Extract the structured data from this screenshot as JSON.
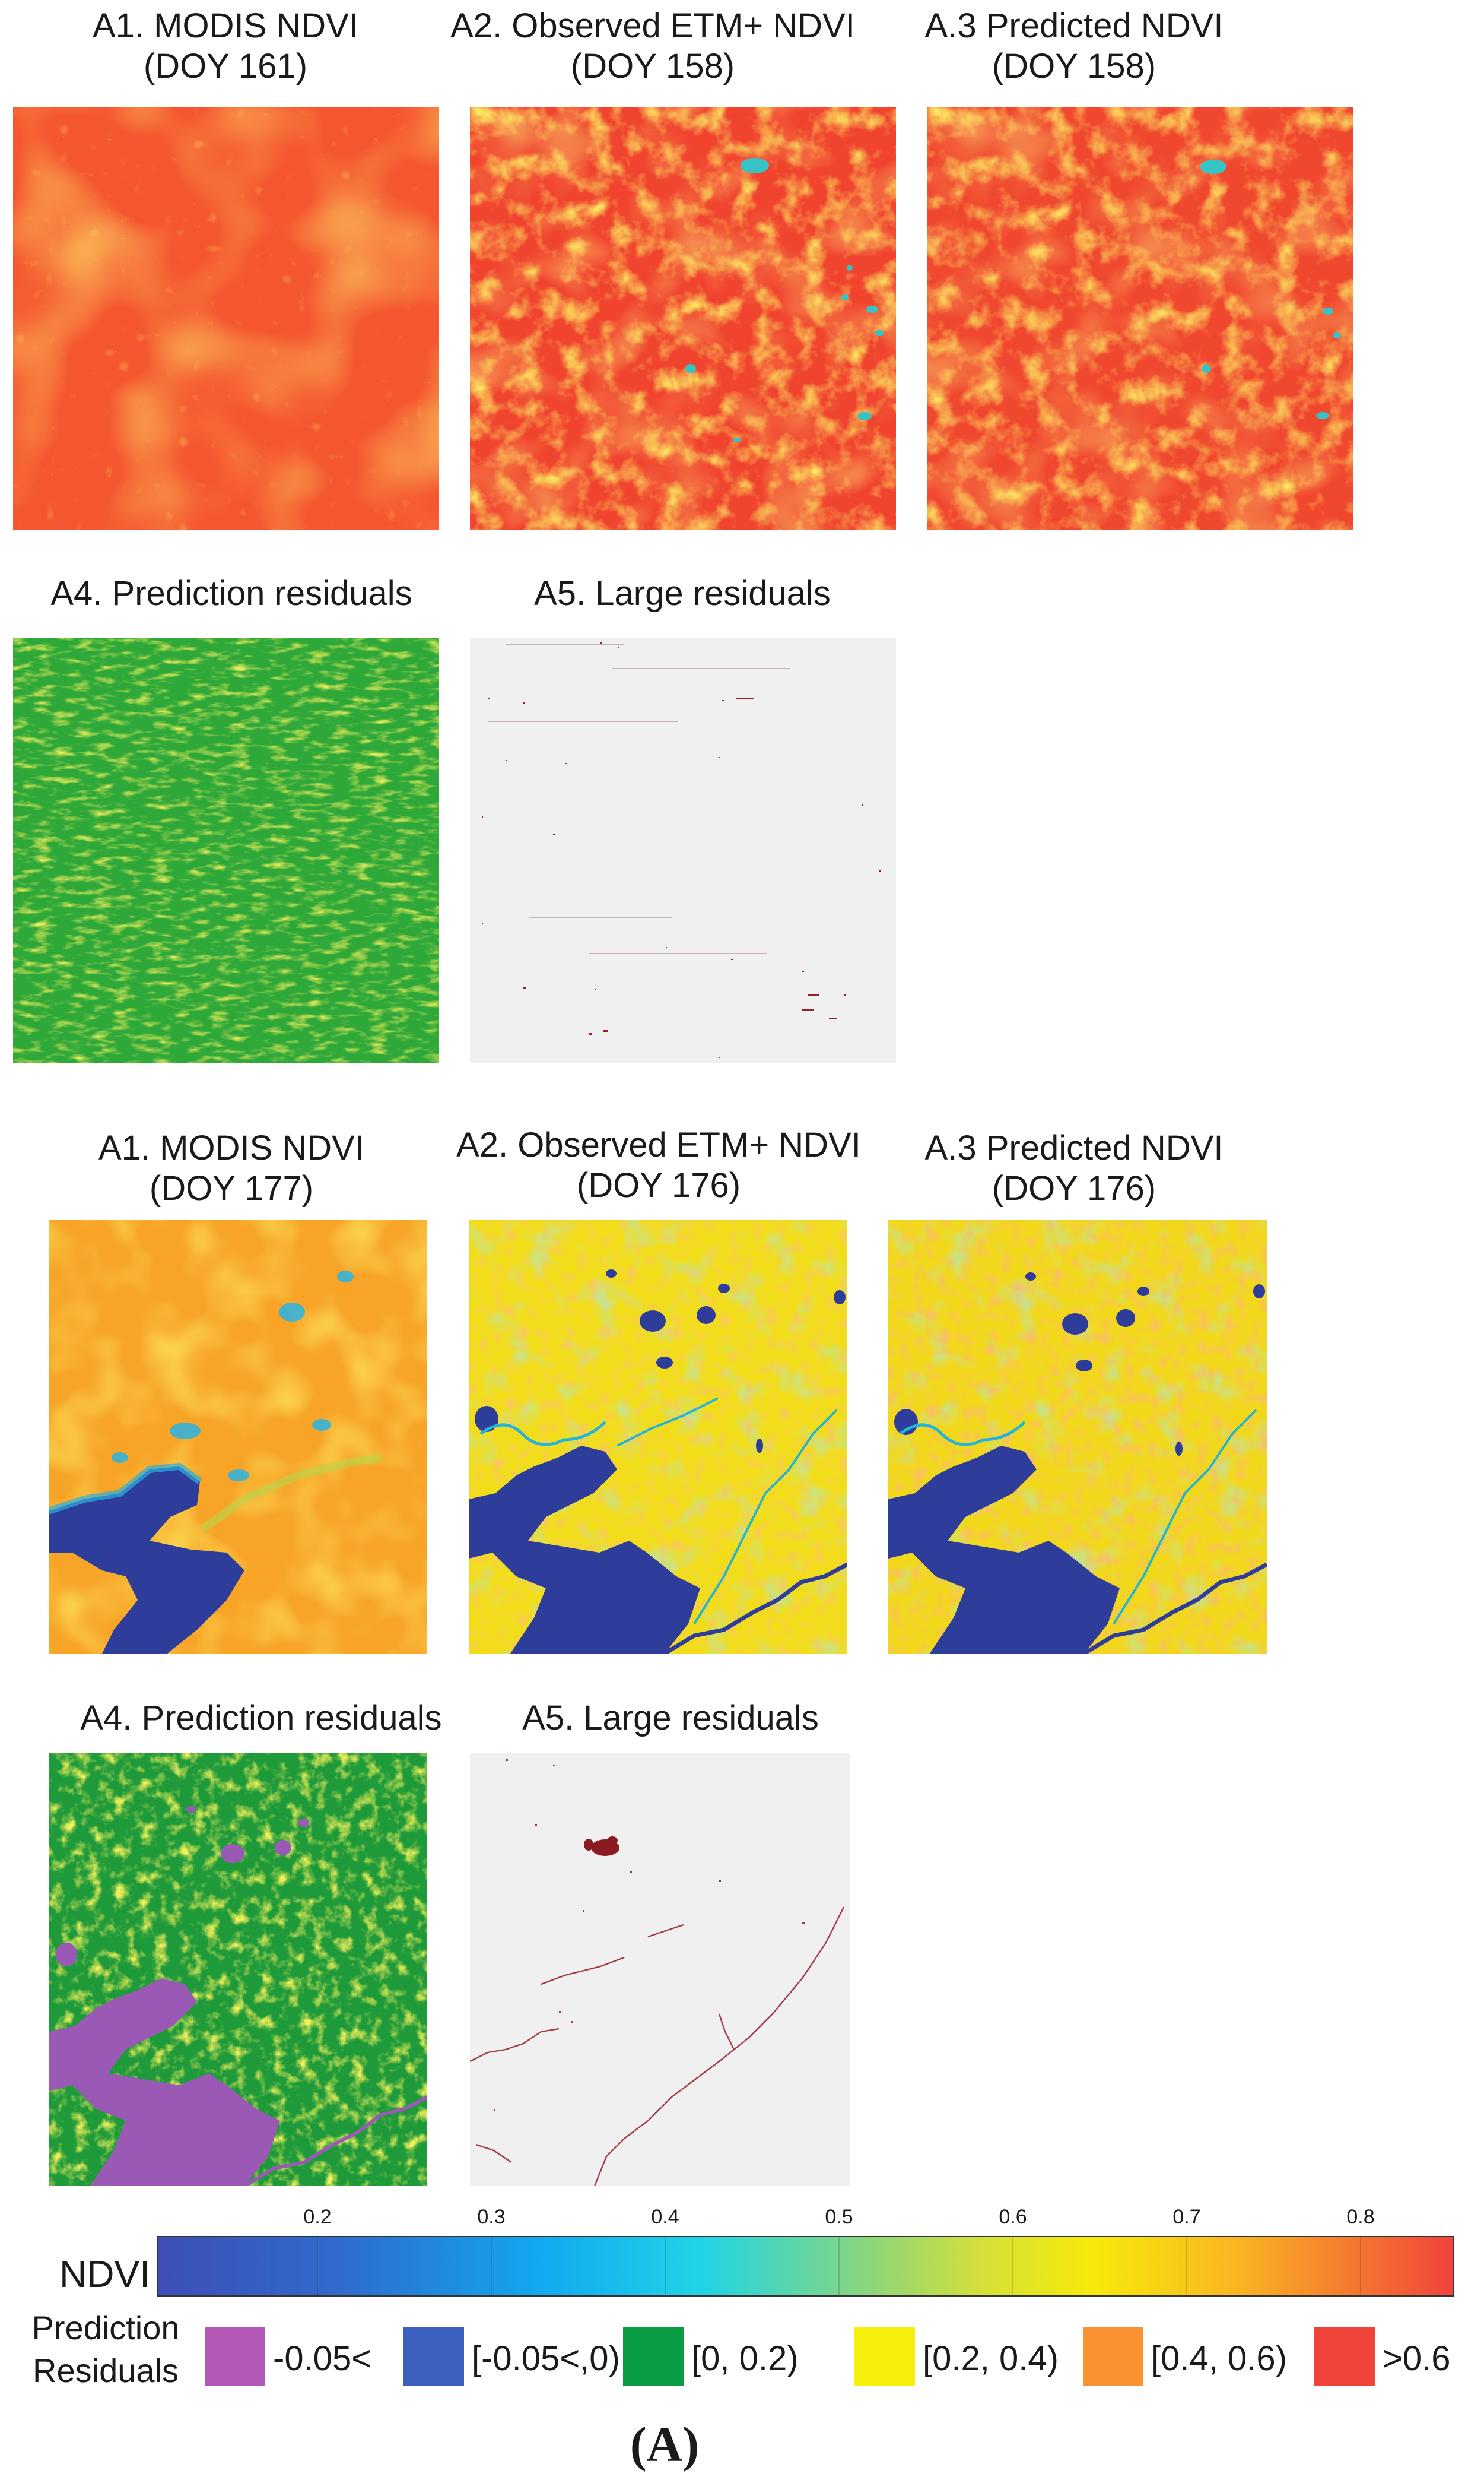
{
  "section1": {
    "titles": {
      "a1": [
        "A1. MODIS NDVI",
        "(DOY 161)"
      ],
      "a2": [
        "A2. Observed ETM+ NDVI",
        "(DOY 158)"
      ],
      "a3": [
        "A.3 Predicted NDVI",
        "(DOY 158)"
      ],
      "a4": "A4. Prediction residuals",
      "a5": "A5. Large residuals"
    }
  },
  "section2": {
    "titles": {
      "a1": [
        "A1. MODIS NDVI",
        "(DOY 177)"
      ],
      "a2": [
        "A2. Observed ETM+ NDVI",
        "(DOY 176)"
      ],
      "a3": [
        "A.3 Predicted NDVI",
        "(DOY 176)"
      ],
      "a4": "A4. Prediction residuals",
      "a5": "A5. Large residuals"
    }
  },
  "colorbar": {
    "label": "NDVI",
    "ticks": [
      "0.2",
      "0.3",
      "0.4",
      "0.5",
      "0.6",
      "0.7",
      "0.8"
    ],
    "colors": [
      "#3b4cb8",
      "#1f6fd0",
      "#10b7ec",
      "#15d3e8",
      "#6fd18f",
      "#c8dc33",
      "#f3e60a",
      "#f9c21a",
      "#f88c2a",
      "#f0443a"
    ]
  },
  "residuals_legend": {
    "label": [
      "Prediction",
      "Residuals"
    ],
    "items": [
      {
        "color": "#b557b7",
        "label": "-0.05<"
      },
      {
        "color": "#3d5fbd",
        "label": "[-0.05<,0)"
      },
      {
        "color": "#0a9c44",
        "label": "[0, 0.2)"
      },
      {
        "color": "#f7ef0c",
        "label": "[0.2, 0.4)"
      },
      {
        "color": "#f99331",
        "label": "[0.4, 0.6)"
      },
      {
        "color": "#f0443a",
        "label": ">0.6"
      }
    ]
  },
  "figure_label": "(A)"
}
